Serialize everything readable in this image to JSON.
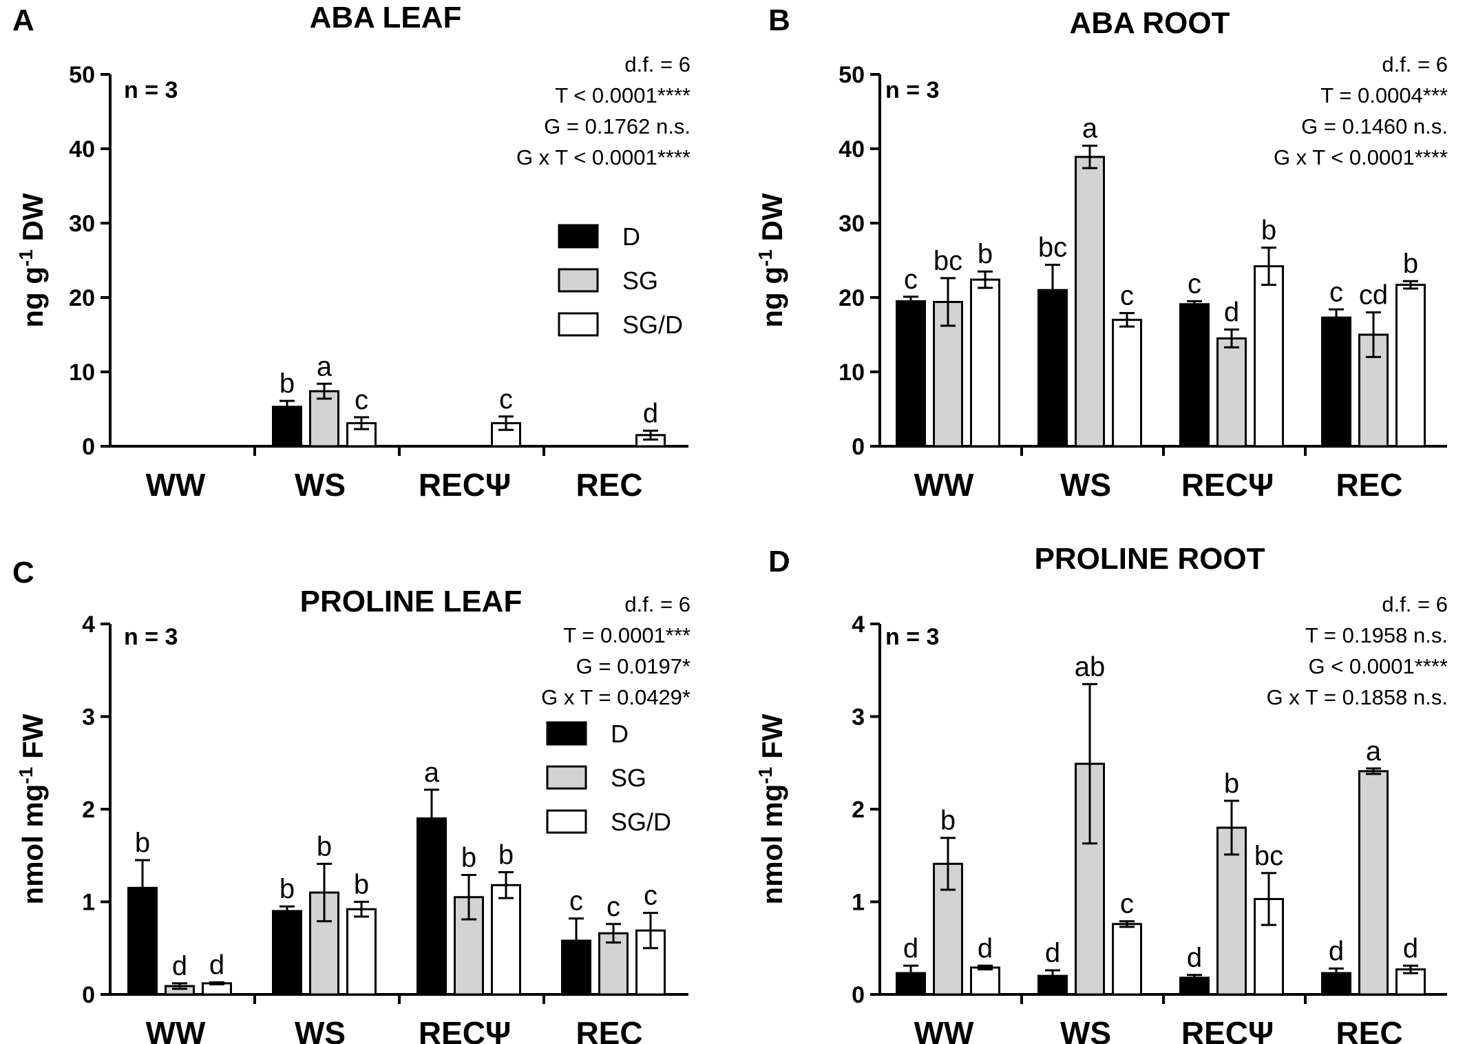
{
  "colors": {
    "D": "#000000",
    "SG": "#d3d3d3",
    "SG/D": "#ffffff",
    "axis": "#000000"
  },
  "chart_data": [
    {
      "panel": "A",
      "type": "bar",
      "title": "ABA LEAF",
      "ylabel_prefix": "ng g",
      "ylabel_sup": "-1",
      "ylabel_suffix": " DW",
      "ylim": [
        0,
        50
      ],
      "yticks": [
        "0",
        "10",
        "20",
        "30",
        "40",
        "50"
      ],
      "categories": [
        "WW",
        "WS",
        "RECΨ",
        "REC"
      ],
      "n_label": "n = 3",
      "stats": [
        "d.f. = 6",
        "T < 0.0001****",
        "G = 0.1762 n.s.",
        "G x T < 0.0001****"
      ],
      "legend": true,
      "series": [
        {
          "name": "D",
          "values": [
            null,
            5.3,
            null,
            null
          ],
          "errors": [
            null,
            0.8,
            null,
            null
          ],
          "letters": [
            "",
            "b",
            "",
            ""
          ]
        },
        {
          "name": "SG",
          "values": [
            null,
            7.4,
            null,
            null
          ],
          "errors": [
            null,
            1.0,
            null,
            null
          ],
          "letters": [
            "",
            "a",
            "",
            ""
          ]
        },
        {
          "name": "SG/D",
          "values": [
            null,
            3.1,
            3.1,
            1.5
          ],
          "errors": [
            null,
            0.8,
            0.9,
            0.6
          ],
          "letters": [
            "",
            "c",
            "c",
            "d"
          ]
        }
      ]
    },
    {
      "panel": "B",
      "type": "bar",
      "title": "ABA ROOT",
      "ylabel_prefix": "ng g",
      "ylabel_sup": "-1",
      "ylabel_suffix": " DW",
      "ylim": [
        0,
        50
      ],
      "yticks": [
        "0",
        "10",
        "20",
        "30",
        "40",
        "50"
      ],
      "categories": [
        "WW",
        "WS",
        "RECΨ",
        "REC"
      ],
      "n_label": "n = 3",
      "stats": [
        "d.f. = 6",
        "T = 0.0004***",
        "G = 0.1460 n.s.",
        "G x T < 0.0001****"
      ],
      "legend": false,
      "series": [
        {
          "name": "D",
          "values": [
            19.5,
            21.0,
            19.1,
            17.3
          ],
          "errors": [
            0.6,
            3.4,
            0.4,
            1.1
          ],
          "letters": [
            "c",
            "bc",
            "c",
            "c"
          ]
        },
        {
          "name": "SG",
          "values": [
            19.4,
            38.9,
            14.5,
            15.0
          ],
          "errors": [
            3.2,
            1.5,
            1.2,
            3.0
          ],
          "letters": [
            "bc",
            "a",
            "d",
            "cd"
          ]
        },
        {
          "name": "SG/D",
          "values": [
            22.4,
            17.0,
            24.2,
            21.7
          ],
          "errors": [
            1.1,
            0.9,
            2.5,
            0.5
          ],
          "letters": [
            "b",
            "c",
            "b",
            "b"
          ]
        }
      ]
    },
    {
      "panel": "C",
      "type": "bar",
      "title": "PROLINE LEAF",
      "ylabel_prefix": "nmol mg",
      "ylabel_sup": "-1",
      "ylabel_suffix": " FW",
      "ylim": [
        0,
        4
      ],
      "yticks": [
        "0",
        "1",
        "2",
        "3",
        "4"
      ],
      "categories": [
        "WW",
        "WS",
        "RECΨ",
        "REC"
      ],
      "n_label": "n = 3",
      "stats": [
        "d.f. = 6",
        "T = 0.0001***",
        "G = 0.0197*",
        "G x T = 0.0429*"
      ],
      "legend": true,
      "series": [
        {
          "name": "D",
          "values": [
            1.15,
            0.9,
            1.9,
            0.58
          ],
          "errors": [
            0.3,
            0.05,
            0.31,
            0.24
          ],
          "letters": [
            "b",
            "b",
            "a",
            "c"
          ]
        },
        {
          "name": "SG",
          "values": [
            0.09,
            1.1,
            1.05,
            0.66
          ],
          "errors": [
            0.03,
            0.31,
            0.24,
            0.1
          ],
          "letters": [
            "d",
            "b",
            "b",
            "c"
          ]
        },
        {
          "name": "SG/D",
          "values": [
            0.12,
            0.92,
            1.18,
            0.69
          ],
          "errors": [
            0.01,
            0.08,
            0.14,
            0.19
          ],
          "letters": [
            "d",
            "b",
            "b",
            "c"
          ]
        }
      ]
    },
    {
      "panel": "D",
      "type": "bar",
      "title": "PROLINE ROOT",
      "ylabel_prefix": "nmol mg",
      "ylabel_sup": "-1",
      "ylabel_suffix": " FW",
      "ylim": [
        0,
        4
      ],
      "yticks": [
        "0",
        "1",
        "2",
        "3",
        "4"
      ],
      "categories": [
        "WW",
        "WS",
        "RECΨ",
        "REC"
      ],
      "n_label": "n = 3",
      "stats": [
        "d.f. = 6",
        "T = 0.1958 n.s.",
        "G < 0.0001****",
        "G x T = 0.1858 n.s."
      ],
      "legend": false,
      "series": [
        {
          "name": "D",
          "values": [
            0.23,
            0.2,
            0.18,
            0.23
          ],
          "errors": [
            0.08,
            0.06,
            0.03,
            0.05
          ],
          "letters": [
            "d",
            "d",
            "d",
            "d"
          ]
        },
        {
          "name": "SG",
          "values": [
            1.41,
            2.49,
            1.8,
            2.41
          ],
          "errors": [
            0.28,
            0.86,
            0.29,
            0.03
          ],
          "letters": [
            "b",
            "ab",
            "b",
            "a"
          ]
        },
        {
          "name": "SG/D",
          "values": [
            0.29,
            0.76,
            1.03,
            0.27
          ],
          "errors": [
            0.02,
            0.03,
            0.28,
            0.04
          ],
          "letters": [
            "d",
            "c",
            "bc",
            "d"
          ]
        }
      ]
    }
  ]
}
